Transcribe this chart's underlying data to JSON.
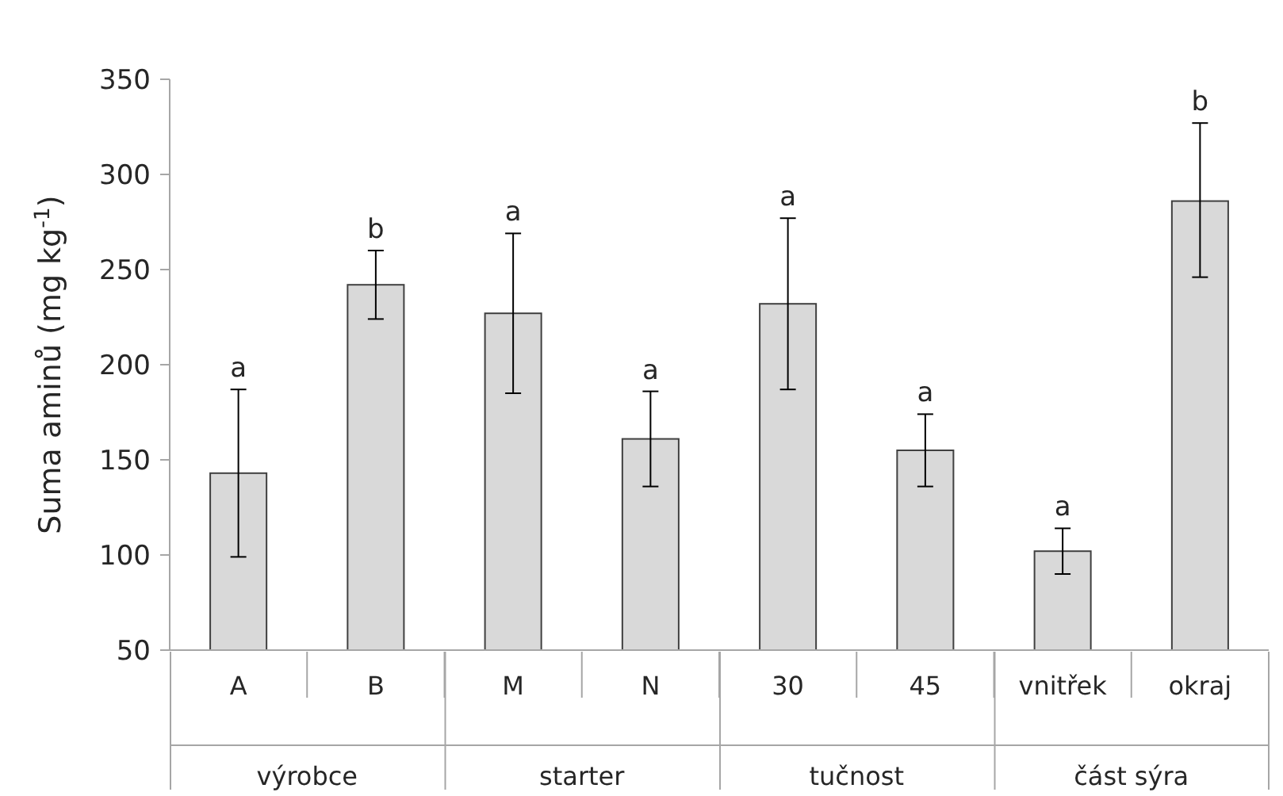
{
  "chart_data": {
    "type": "bar",
    "ylabel": "Suma aminů (mg kg$^{-1}$)",
    "categories": [
      "A",
      "B",
      "M",
      "N",
      "30",
      "45",
      "vnitřek",
      "okraj"
    ],
    "values": [
      143,
      242,
      227,
      161,
      232,
      155,
      102,
      286
    ],
    "errors": [
      [
        99,
        187
      ],
      [
        224,
        260
      ],
      [
        185,
        269
      ],
      [
        136,
        186
      ],
      [
        187,
        277
      ],
      [
        136,
        174
      ],
      [
        90,
        114
      ],
      [
        246,
        327
      ]
    ],
    "color": "#d9d9d9",
    "ylim": [
      50,
      350
    ],
    "yticks": [
      50,
      100,
      150,
      200,
      250,
      300,
      350
    ],
    "grid": false,
    "annotations": [
      {
        "text": "a",
        "x": "A",
        "y": 187
      },
      {
        "text": "b",
        "x": "B",
        "y": 260
      },
      {
        "text": "a",
        "x": "M",
        "y": 269
      },
      {
        "text": "a",
        "x": "N",
        "y": 186
      },
      {
        "text": "a",
        "x": "30",
        "y": 277
      },
      {
        "text": "a",
        "x": "45",
        "y": 174
      },
      {
        "text": "a",
        "x": "vnitřek",
        "y": 114
      },
      {
        "text": "b",
        "x": "okraj",
        "y": 327
      },
      "výrobce",
      "starter",
      "tučnost",
      "část sýra"
    ]
  }
}
